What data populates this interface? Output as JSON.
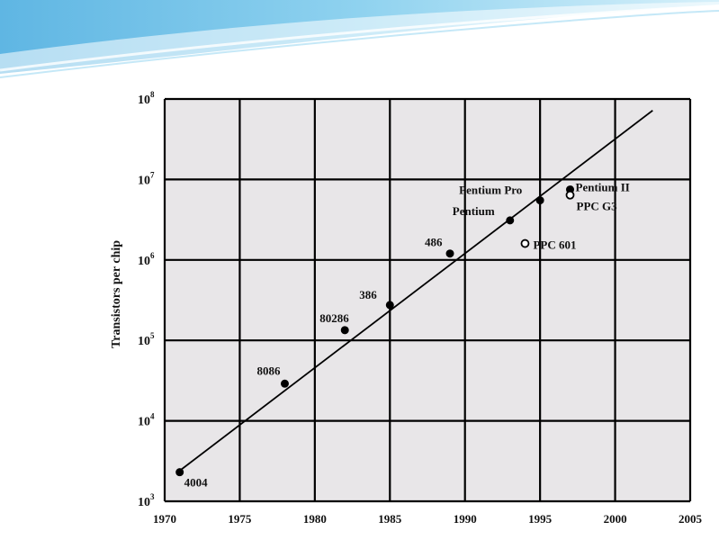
{
  "chart_data": {
    "type": "scatter",
    "title": "",
    "xlabel": "",
    "ylabel": "Transistors per chip",
    "x_scale": "linear",
    "y_scale": "log",
    "xlim": [
      1970,
      2005
    ],
    "ylim": [
      1000,
      100000000
    ],
    "x_ticks": [
      "1970",
      "1975",
      "1980",
      "1985",
      "1990",
      "1995",
      "2000",
      "2005"
    ],
    "y_ticks": [
      {
        "base": "10",
        "exp": "3"
      },
      {
        "base": "10",
        "exp": "4"
      },
      {
        "base": "10",
        "exp": "5"
      },
      {
        "base": "10",
        "exp": "6"
      },
      {
        "base": "10",
        "exp": "7"
      },
      {
        "base": "10",
        "exp": "8"
      }
    ],
    "grid": true,
    "points": [
      {
        "label": "4004",
        "x": 1971,
        "y": 2300,
        "filled": true
      },
      {
        "label": "8086",
        "x": 1978,
        "y": 29000,
        "filled": true
      },
      {
        "label": "80286",
        "x": 1982,
        "y": 134000,
        "filled": true
      },
      {
        "label": "386",
        "x": 1985,
        "y": 275000,
        "filled": true
      },
      {
        "label": "486",
        "x": 1989,
        "y": 1200000,
        "filled": true
      },
      {
        "label": "Pentium",
        "x": 1993,
        "y": 3100000,
        "filled": true
      },
      {
        "label": "Pentium Pro",
        "x": 1995,
        "y": 5500000,
        "filled": true
      },
      {
        "label": "Pentium II",
        "x": 1997,
        "y": 7500000,
        "filled": true
      },
      {
        "label": "PPC 601",
        "x": 1994,
        "y": 1600000,
        "filled": false
      },
      {
        "label": "PPC G3",
        "x": 1997,
        "y": 6400000,
        "filled": false
      }
    ],
    "trend_line": {
      "x": [
        1971,
        2002.5
      ],
      "y": [
        2400,
        72000000
      ]
    },
    "colors": {
      "panel": "#e8e6e8",
      "grid": "#000000",
      "marker": "#000000",
      "banner": "#7ec8ea"
    }
  }
}
